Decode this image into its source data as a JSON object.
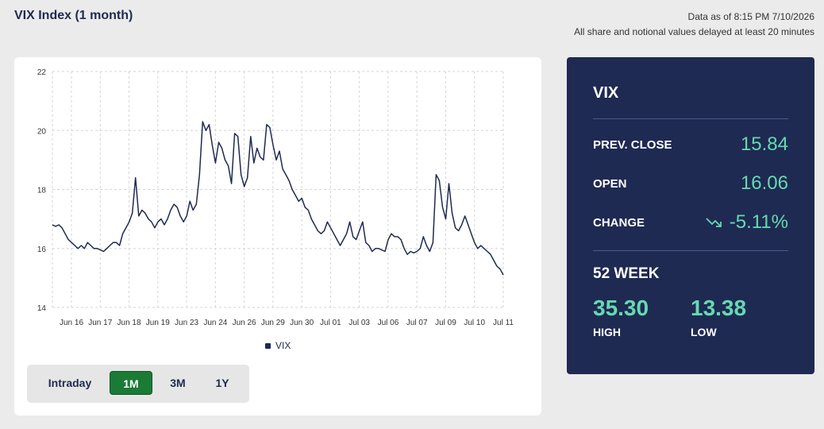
{
  "header": {
    "title": "VIX Index (1 month)",
    "data_as_of": "Data as of 8:15 PM 7/10/2026",
    "delay_note": "All share and notional values delayed at least 20 minutes"
  },
  "legend": {
    "label": "VIX"
  },
  "range_buttons": [
    {
      "label": "Intraday",
      "active": false
    },
    {
      "label": "1M",
      "active": true
    },
    {
      "label": "3M",
      "active": false
    },
    {
      "label": "1Y",
      "active": false
    }
  ],
  "panel": {
    "title": "VIX",
    "prev_close_label": "PREV. CLOSE",
    "prev_close_value": "15.84",
    "open_label": "OPEN",
    "open_value": "16.06",
    "change_label": "CHANGE",
    "change_value": "-5.11%",
    "change_icon": "trending-down-icon",
    "week52_label": "52 WEEK",
    "high_value": "35.30",
    "high_label": "HIGH",
    "low_value": "13.38",
    "low_label": "LOW"
  },
  "colors": {
    "navy": "#1e2a52",
    "accent_green": "#66d9b0",
    "button_green": "#1a7a36"
  },
  "chart_data": {
    "type": "line",
    "ylim": [
      14,
      22
    ],
    "yticks": [
      "14",
      "16",
      "18",
      "20",
      "22"
    ],
    "xticks": [
      "Jun 16",
      "Jun 17",
      "Jun 18",
      "Jun 19",
      "Jun 23",
      "Jun 24",
      "Jun 26",
      "Jun 29",
      "Jun 30",
      "Jul 01",
      "Jul 03",
      "Jul 06",
      "Jul 07",
      "Jul 09",
      "Jul 10",
      "Jul 11"
    ],
    "series": [
      {
        "name": "VIX",
        "values": [
          16.8,
          16.75,
          16.8,
          16.7,
          16.5,
          16.3,
          16.2,
          16.1,
          16.0,
          16.1,
          16.0,
          16.2,
          16.1,
          16.0,
          16.0,
          15.95,
          15.9,
          16.0,
          16.1,
          16.2,
          16.2,
          16.1,
          16.5,
          16.7,
          16.9,
          17.2,
          18.4,
          17.1,
          17.3,
          17.2,
          17.0,
          16.9,
          16.7,
          16.9,
          17.0,
          16.8,
          17.0,
          17.3,
          17.5,
          17.4,
          17.1,
          16.9,
          17.1,
          17.6,
          17.3,
          17.5,
          18.5,
          20.3,
          20.0,
          20.2,
          19.5,
          18.9,
          19.6,
          19.4,
          19.0,
          18.8,
          18.2,
          19.9,
          19.8,
          18.5,
          18.1,
          18.4,
          19.8,
          18.9,
          19.4,
          19.1,
          19.0,
          20.2,
          20.1,
          19.5,
          19.0,
          19.3,
          18.7,
          18.5,
          18.3,
          18.0,
          17.8,
          17.6,
          17.7,
          17.4,
          17.3,
          17.0,
          16.8,
          16.6,
          16.5,
          16.6,
          16.9,
          16.7,
          16.5,
          16.3,
          16.1,
          16.3,
          16.5,
          16.9,
          16.4,
          16.3,
          16.6,
          16.9,
          16.2,
          16.1,
          15.9,
          16.0,
          16.0,
          15.95,
          15.9,
          16.3,
          16.5,
          16.4,
          16.4,
          16.3,
          16.0,
          15.8,
          15.9,
          15.85,
          15.9,
          16.0,
          16.4,
          16.1,
          15.9,
          16.2,
          18.5,
          18.3,
          17.4,
          17.0,
          18.2,
          17.2,
          16.7,
          16.6,
          16.8,
          17.1,
          16.8,
          16.5,
          16.2,
          16.0,
          16.1,
          16.0,
          15.9,
          15.8,
          15.6,
          15.4,
          15.3,
          15.1
        ]
      }
    ]
  }
}
